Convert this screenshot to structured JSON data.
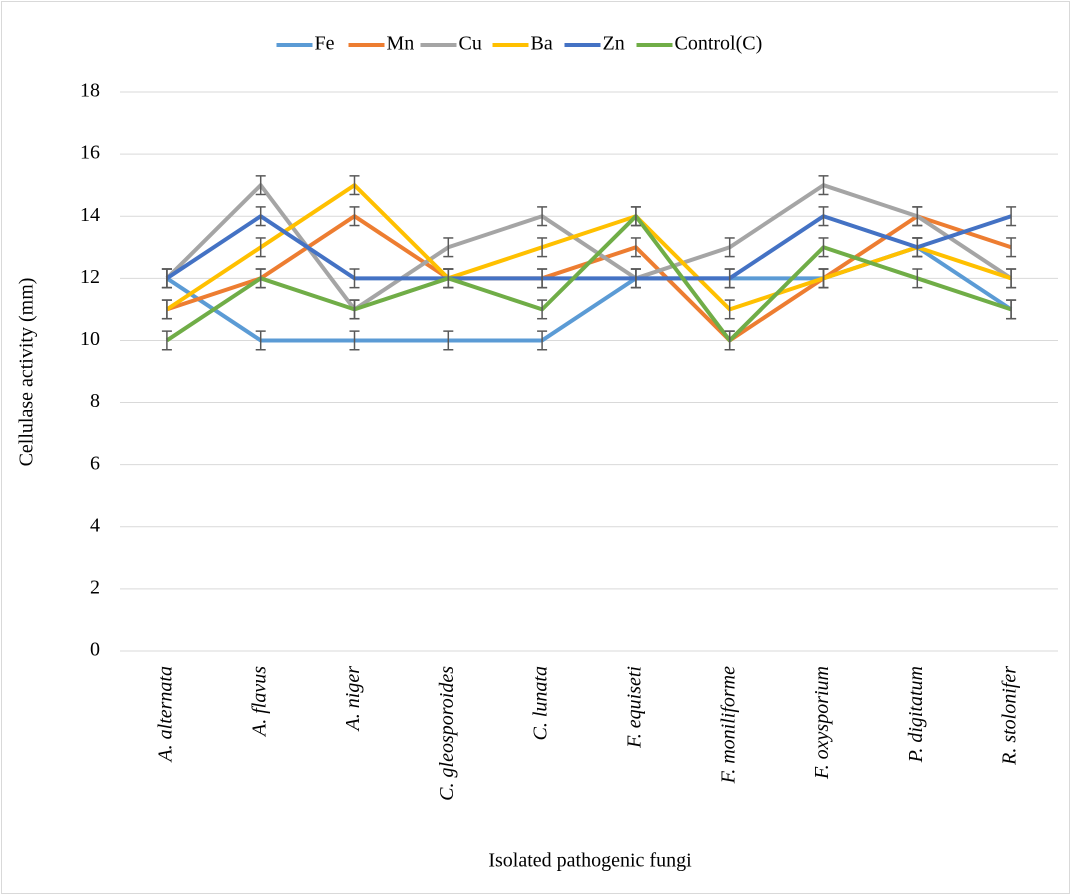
{
  "chart_data": {
    "type": "line",
    "x_label": "Isolated pathogenic fungi",
    "y_label": "Cellulase activity (mm)",
    "categories": [
      "A. alternata",
      "A. flavus",
      "A. niger",
      "C. gleosporoides",
      "C. lunata",
      "F. equiseti",
      "F. moniliforme",
      "F. oxysporium",
      "P. digitatum",
      "R. stolonifer"
    ],
    "series": [
      {
        "name": "Fe",
        "color": "#5b9bd5",
        "values": [
          12,
          10,
          10,
          10,
          10,
          12,
          12,
          12,
          13,
          11
        ]
      },
      {
        "name": "Mn",
        "color": "#ed7d31",
        "values": [
          11,
          12,
          14,
          12,
          12,
          13,
          10,
          12,
          14,
          13
        ]
      },
      {
        "name": "Cu",
        "color": "#a5a5a5",
        "values": [
          12,
          15,
          11,
          13,
          14,
          12,
          13,
          15,
          14,
          12
        ]
      },
      {
        "name": "Ba",
        "color": "#ffc000",
        "values": [
          11,
          13,
          15,
          12,
          13,
          14,
          11,
          12,
          13,
          12
        ]
      },
      {
        "name": "Zn",
        "color": "#4472c4",
        "values": [
          12,
          14,
          12,
          12,
          12,
          12,
          12,
          14,
          13,
          14
        ]
      },
      {
        "name": "Control(C)",
        "color": "#70ad47",
        "values": [
          10,
          12,
          11,
          12,
          11,
          14,
          10,
          13,
          12,
          11
        ]
      }
    ],
    "error_bar": 0.3,
    "ylim": [
      0,
      18
    ],
    "yticks": [
      0,
      2,
      4,
      6,
      8,
      10,
      12,
      14,
      16,
      18
    ],
    "grid": true,
    "legend": "top"
  }
}
